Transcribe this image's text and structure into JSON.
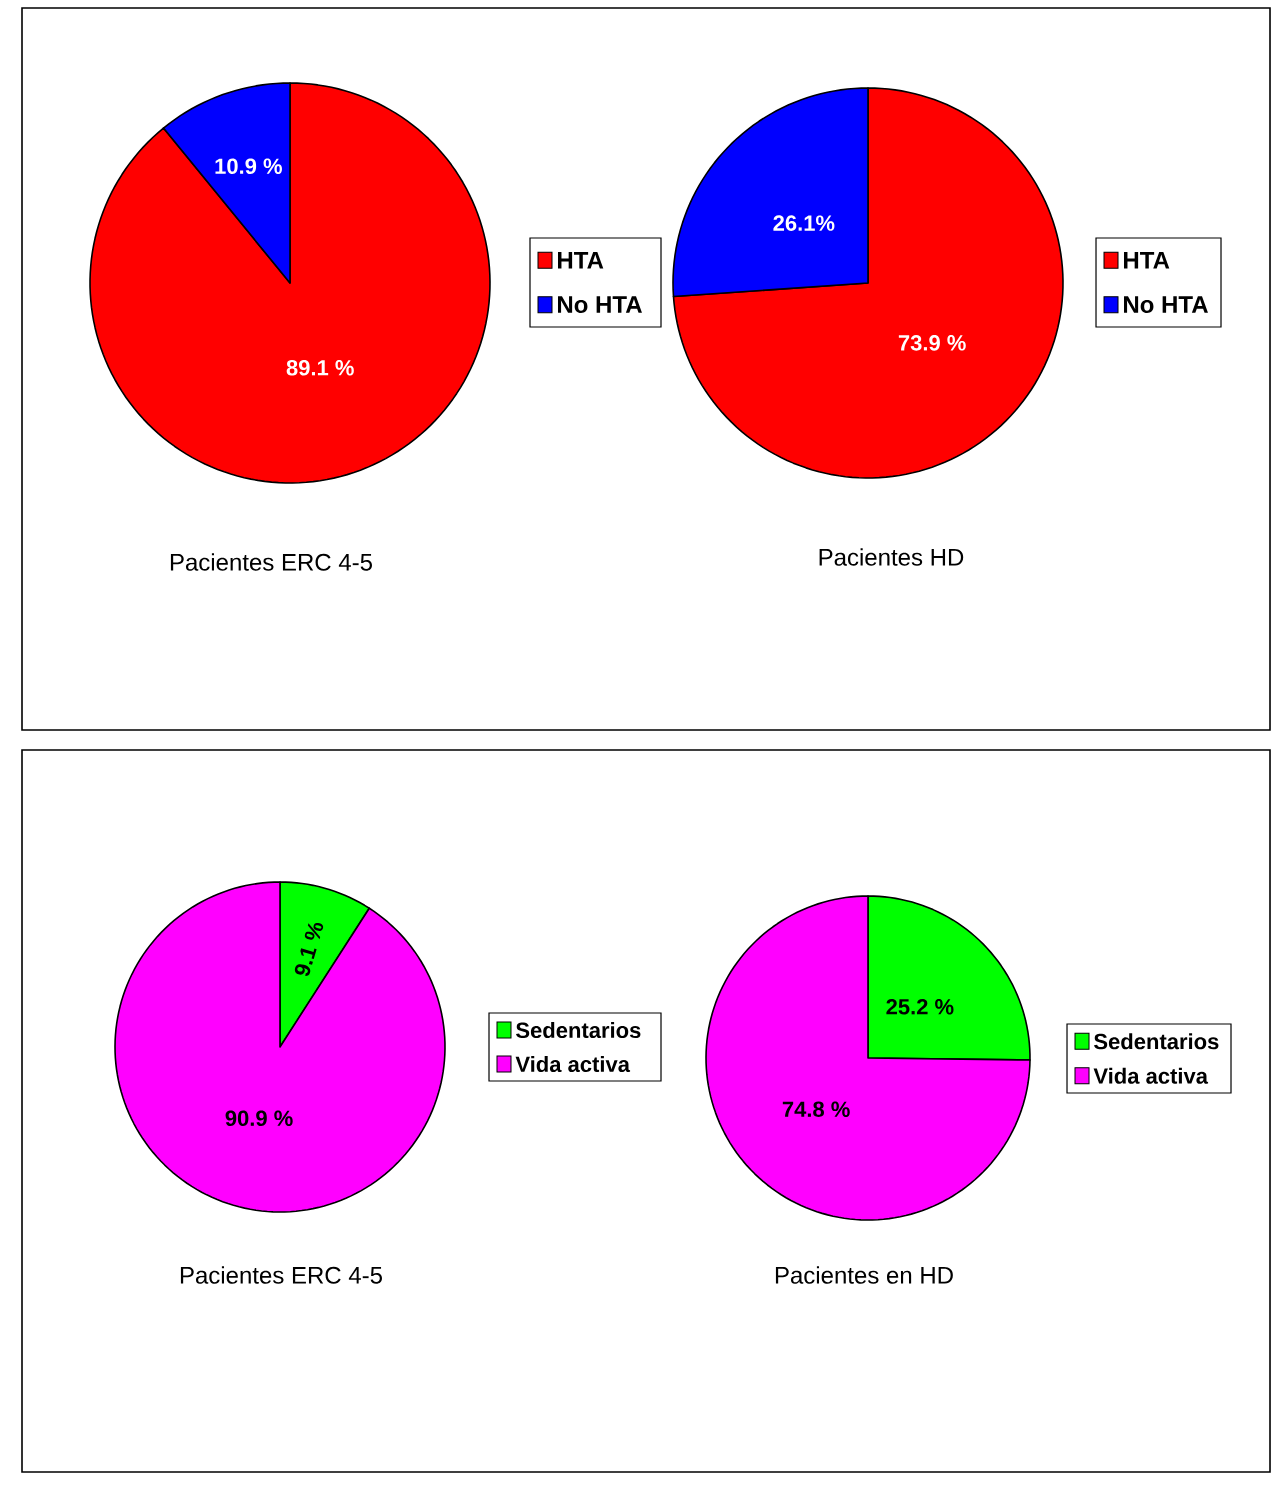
{
  "chart_data": [
    {
      "type": "pie",
      "title": "Pacientes ERC 4-5",
      "categories": [
        "HTA",
        "No HTA"
      ],
      "values": [
        89.1,
        10.9
      ],
      "colors": [
        "#ff0000",
        "#0000ff"
      ],
      "value_labels": [
        "89.1 %",
        "10.9 %"
      ],
      "legend": "right"
    },
    {
      "type": "pie",
      "title": "Pacientes HD",
      "categories": [
        "HTA",
        "No HTA"
      ],
      "values": [
        73.9,
        26.1
      ],
      "colors": [
        "#ff0000",
        "#0000ff"
      ],
      "value_labels": [
        "73.9 %",
        "26.1%"
      ],
      "legend": "right"
    },
    {
      "type": "pie",
      "title": "Pacientes ERC 4-5",
      "categories": [
        "Sedentarios",
        "Vida activa"
      ],
      "values": [
        9.1,
        90.9
      ],
      "colors": [
        "#00ff00",
        "#ff00ff"
      ],
      "value_labels": [
        "9.1 %",
        "90.9 %"
      ],
      "legend": "right"
    },
    {
      "type": "pie",
      "title": "Pacientes en HD",
      "categories": [
        "Sedentarios",
        "Vida activa"
      ],
      "values": [
        25.2,
        74.8
      ],
      "colors": [
        "#00ff00",
        "#ff00ff"
      ],
      "value_labels": [
        "25.2 %",
        "74.8 %"
      ],
      "legend": "right"
    }
  ]
}
